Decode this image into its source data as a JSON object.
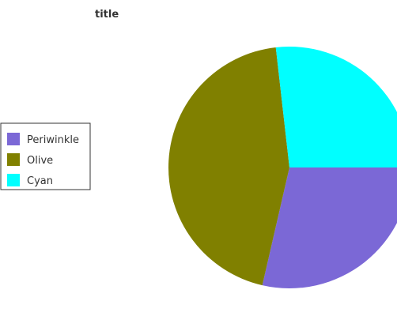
{
  "chart_data": {
    "type": "pie",
    "title": "title",
    "labels": [
      "Periwinkle",
      "Olive",
      "Cyan"
    ],
    "values": [
      28.6,
      44.6,
      26.8
    ],
    "colors": [
      "#7b68d6",
      "#808000",
      "#00ffff"
    ],
    "start_angle_deg": 0,
    "direction": "clockwise",
    "legend": {
      "position": "left",
      "entries": [
        "Periwinkle",
        "Olive",
        "Cyan"
      ]
    }
  }
}
